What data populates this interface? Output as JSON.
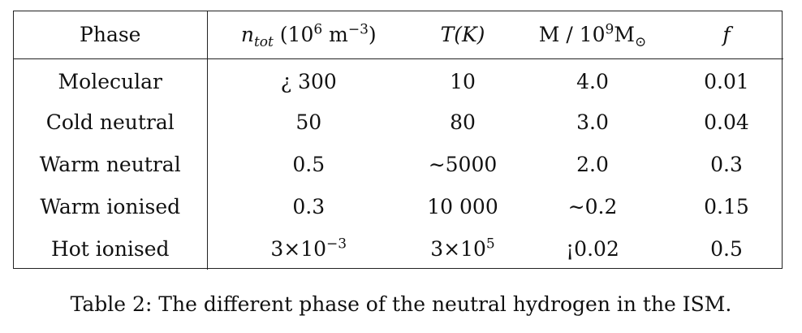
{
  "table": {
    "headers": {
      "phase": "Phase",
      "density_var": "n",
      "density_sub": "tot",
      "density_unit_pre": " (10",
      "density_unit_exp1": "6",
      "density_unit_mid": " m",
      "density_unit_exp2": "−3",
      "density_unit_post": ")",
      "temperature": "T(K)",
      "mass_pre": "M / 10",
      "mass_exp": "9",
      "mass_post": "M",
      "mass_sub": "⊙",
      "fraction": "f"
    },
    "rows": [
      {
        "phase": "Molecular",
        "density": "¿ 300",
        "temperature": "10",
        "mass": "4.0",
        "fraction": "0.01"
      },
      {
        "phase": "Cold neutral",
        "density": "50",
        "temperature": "80",
        "mass": "3.0",
        "fraction": "0.04"
      },
      {
        "phase": "Warm neutral",
        "density": "0.5",
        "temperature": "∼5000",
        "mass": "2.0",
        "fraction": "0.3"
      },
      {
        "phase": "Warm ionised",
        "density": "0.3",
        "temperature": "10 000",
        "mass": "∼0.2",
        "fraction": "0.15"
      },
      {
        "phase": "Hot ionised",
        "density_base": "3×10",
        "density_exp": "−3",
        "temperature_base": "3×10",
        "temperature_exp": "5",
        "mass": "¡0.02",
        "fraction": "0.5"
      }
    ]
  },
  "caption": "Table 2: The different phase of the neutral hydrogen in the ISM."
}
